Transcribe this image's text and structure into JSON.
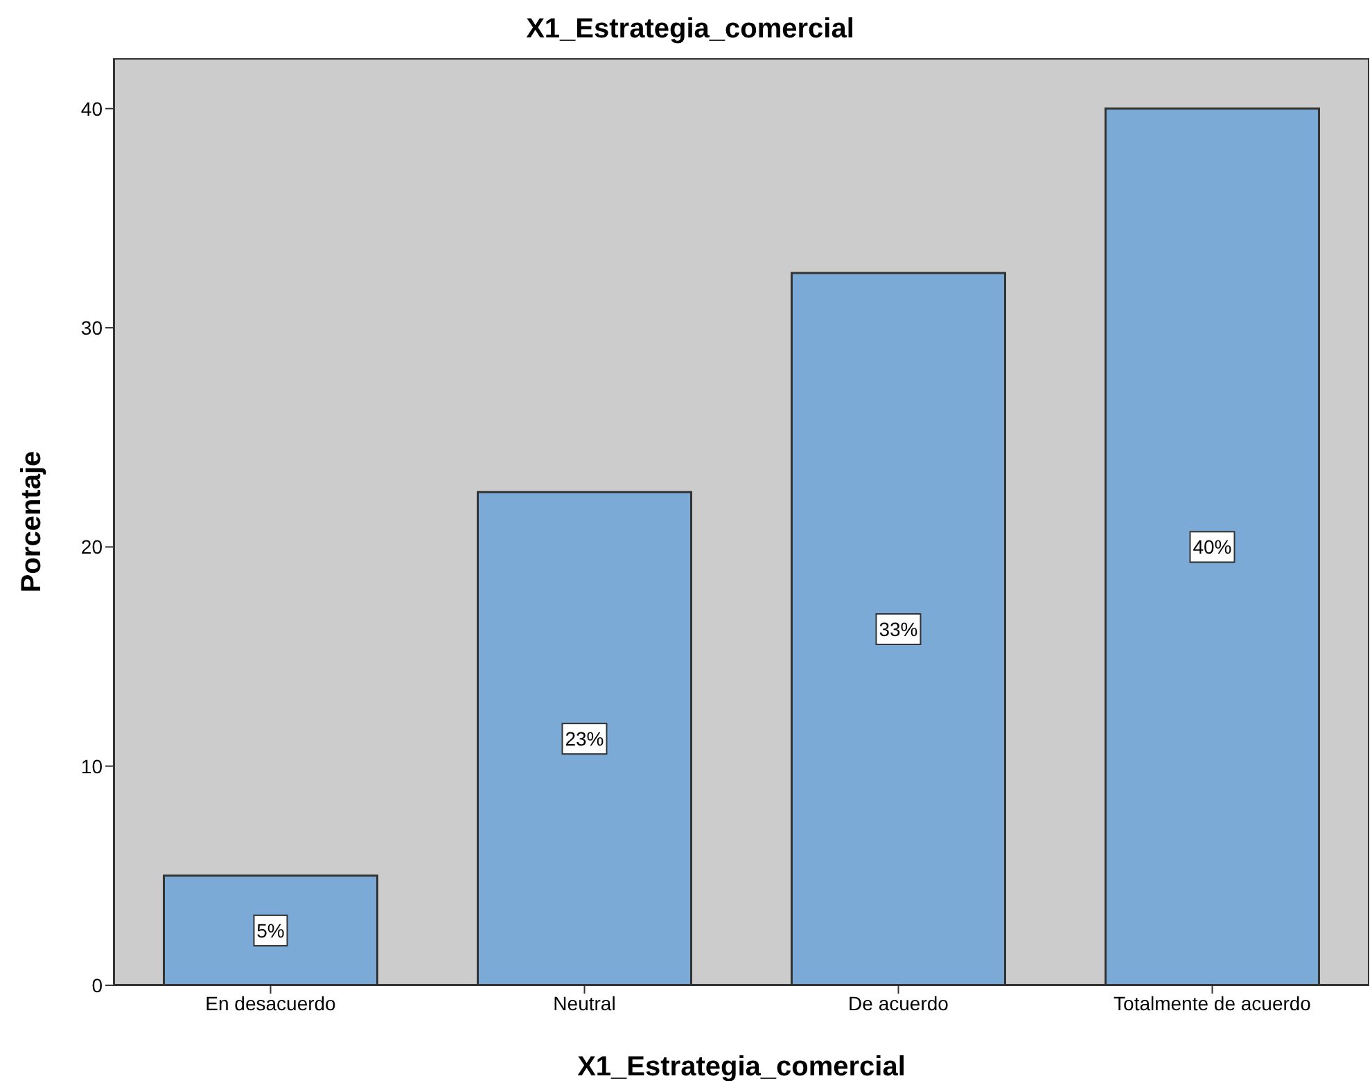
{
  "chart_data": {
    "type": "bar",
    "title": "X1_Estrategia_comercial",
    "xlabel": "X1_Estrategia_comercial",
    "ylabel": "Porcentaje",
    "categories": [
      "En desacuerdo",
      "Neutral",
      "De acuerdo",
      "Totalmente de acuerdo"
    ],
    "values": [
      5,
      22.5,
      32.5,
      40
    ],
    "value_labels": [
      "5%",
      "23%",
      "33%",
      "40%"
    ],
    "color": "#7baad7",
    "ylim": [
      0,
      42.3
    ],
    "yticks": [
      0,
      10,
      20,
      30,
      40
    ]
  }
}
